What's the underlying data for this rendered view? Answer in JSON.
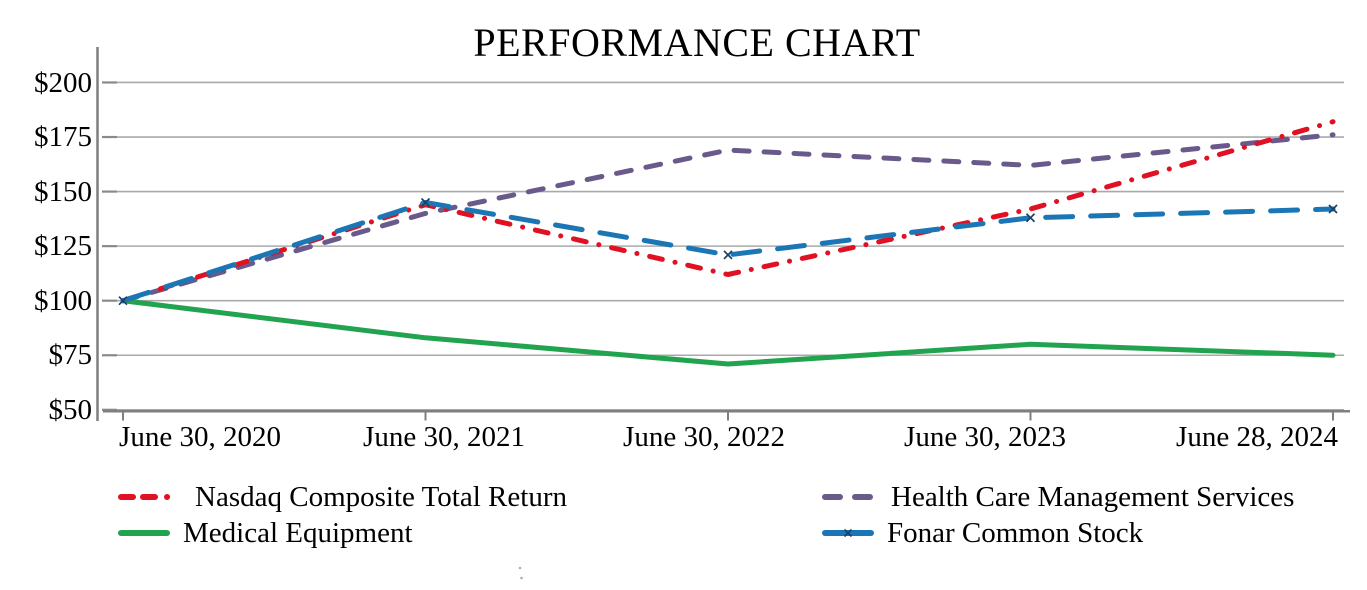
{
  "title": "PERFORMANCE CHART",
  "chart_data": {
    "type": "line",
    "title": "PERFORMANCE CHART",
    "xlabel": "",
    "ylabel": "",
    "x_categories": [
      "June 30, 2020",
      "June 30, 2021",
      "June 30, 2022",
      "June 30, 2023",
      "June 28, 2024"
    ],
    "y_ticks": [
      "$200",
      "$175",
      "$150",
      "$125",
      "$100",
      "$75",
      "$50"
    ],
    "y_tick_values": [
      200,
      175,
      150,
      125,
      100,
      75,
      50
    ],
    "ylim": [
      50,
      212
    ],
    "grid": "horizontal",
    "grid_color": "#a9a9a9",
    "axis_color": "#7f7f7f",
    "legend_position": "bottom-two-columns",
    "series": [
      {
        "name": "Nasdaq Composite Total Return",
        "color": "#e01122",
        "line_style": "dash-dot",
        "values": [
          100,
          144,
          112,
          142,
          182
        ]
      },
      {
        "name": "Health Care Management Services",
        "color": "#6a5a8b",
        "line_style": "dashed",
        "values": [
          100,
          140,
          169,
          162,
          176
        ]
      },
      {
        "name": "Medical Equipment",
        "color": "#22a350",
        "line_style": "solid",
        "values": [
          100,
          83,
          71,
          80,
          75
        ]
      },
      {
        "name": "Fonar Common Stock",
        "color": "#1a76b5",
        "line_style": "long-dash",
        "marker": "x",
        "marker_color": "#1d4066",
        "values": [
          100,
          145,
          121,
          138,
          142
        ]
      }
    ]
  }
}
